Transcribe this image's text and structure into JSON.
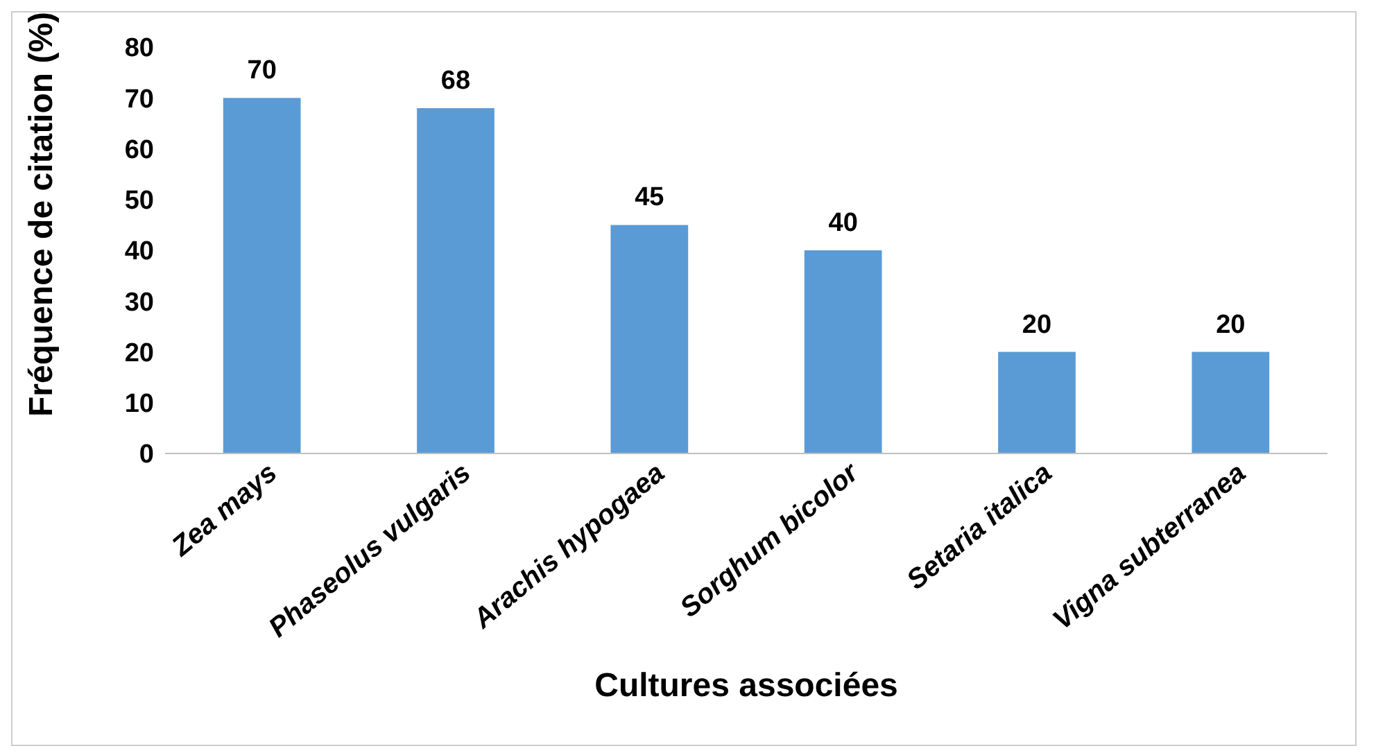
{
  "chart_data": {
    "type": "bar",
    "xlabel": "Cultures associées",
    "ylabel": "Fréquence de citation (%)",
    "categories": [
      "Zea mays",
      "Phaseolus vulgaris",
      "Arachis hypogaea",
      "Sorghum bicolor",
      "Setaria italica",
      "Vigna subterranea"
    ],
    "values": [
      70,
      68,
      45,
      40,
      20,
      20
    ],
    "color": "#5b9bd5",
    "ylim": [
      0,
      80
    ],
    "yticks": [
      0,
      10,
      20,
      30,
      40,
      50,
      60,
      70,
      80
    ],
    "grid": false,
    "data_labels": true
  }
}
